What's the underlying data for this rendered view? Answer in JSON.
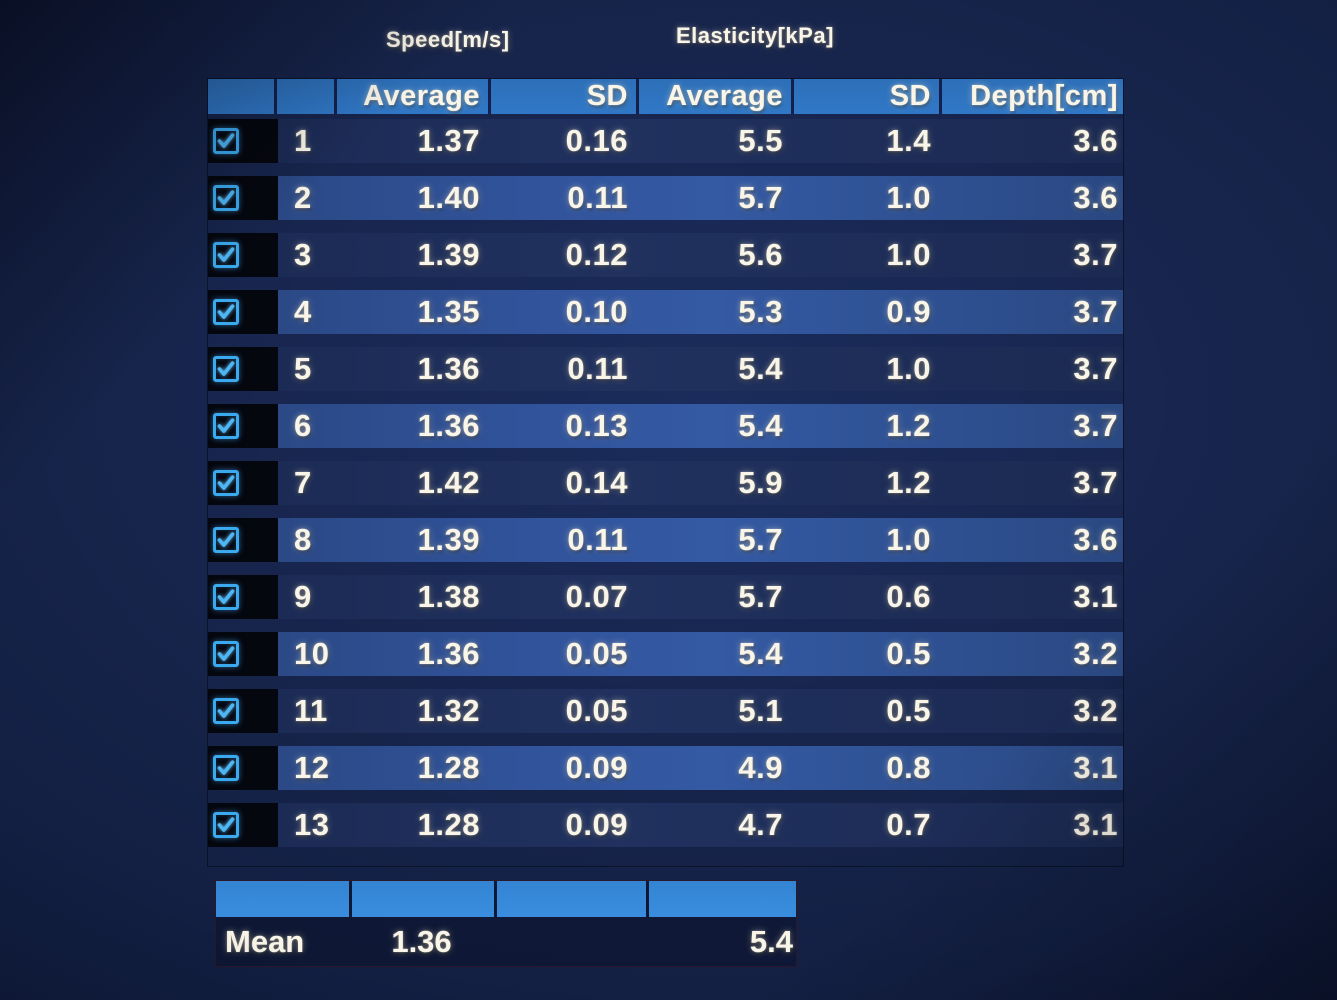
{
  "group_headers": {
    "speed": "Speed[m/s]",
    "elasticity": "Elasticity[kPa]"
  },
  "table": {
    "headers": [
      "",
      "",
      "Average",
      "SD",
      "Average",
      "SD",
      "Depth[cm]"
    ],
    "rows": [
      {
        "num": "1",
        "checked": true,
        "speed_avg": "1.37",
        "speed_sd": "0.16",
        "elast_avg": "5.5",
        "elast_sd": "1.4",
        "depth": "3.6"
      },
      {
        "num": "2",
        "checked": true,
        "speed_avg": "1.40",
        "speed_sd": "0.11",
        "elast_avg": "5.7",
        "elast_sd": "1.0",
        "depth": "3.6"
      },
      {
        "num": "3",
        "checked": true,
        "speed_avg": "1.39",
        "speed_sd": "0.12",
        "elast_avg": "5.6",
        "elast_sd": "1.0",
        "depth": "3.7"
      },
      {
        "num": "4",
        "checked": true,
        "speed_avg": "1.35",
        "speed_sd": "0.10",
        "elast_avg": "5.3",
        "elast_sd": "0.9",
        "depth": "3.7"
      },
      {
        "num": "5",
        "checked": true,
        "speed_avg": "1.36",
        "speed_sd": "0.11",
        "elast_avg": "5.4",
        "elast_sd": "1.0",
        "depth": "3.7"
      },
      {
        "num": "6",
        "checked": true,
        "speed_avg": "1.36",
        "speed_sd": "0.13",
        "elast_avg": "5.4",
        "elast_sd": "1.2",
        "depth": "3.7"
      },
      {
        "num": "7",
        "checked": true,
        "speed_avg": "1.42",
        "speed_sd": "0.14",
        "elast_avg": "5.9",
        "elast_sd": "1.2",
        "depth": "3.7"
      },
      {
        "num": "8",
        "checked": true,
        "speed_avg": "1.39",
        "speed_sd": "0.11",
        "elast_avg": "5.7",
        "elast_sd": "1.0",
        "depth": "3.6"
      },
      {
        "num": "9",
        "checked": true,
        "speed_avg": "1.38",
        "speed_sd": "0.07",
        "elast_avg": "5.7",
        "elast_sd": "0.6",
        "depth": "3.1"
      },
      {
        "num": "10",
        "checked": true,
        "speed_avg": "1.36",
        "speed_sd": "0.05",
        "elast_avg": "5.4",
        "elast_sd": "0.5",
        "depth": "3.2"
      },
      {
        "num": "11",
        "checked": true,
        "speed_avg": "1.32",
        "speed_sd": "0.05",
        "elast_avg": "5.1",
        "elast_sd": "0.5",
        "depth": "3.2"
      },
      {
        "num": "12",
        "checked": true,
        "speed_avg": "1.28",
        "speed_sd": "0.09",
        "elast_avg": "4.9",
        "elast_sd": "0.8",
        "depth": "3.1"
      },
      {
        "num": "13",
        "checked": true,
        "speed_avg": "1.28",
        "speed_sd": "0.09",
        "elast_avg": "4.7",
        "elast_sd": "0.7",
        "depth": "3.1"
      }
    ]
  },
  "mean": {
    "label": "Mean",
    "speed_average": "1.36",
    "elasticity_average": "5.4"
  },
  "icons": {
    "row_checkbox": "check-icon"
  },
  "colors": {
    "header_blue": "#2e73c0",
    "mean_bar_blue": "#3586d6",
    "row_dark": "#1c2b56",
    "row_light": "#2f5198",
    "checkbox_accent": "#3aa9ee",
    "text_warm_white": "#f9f5e8"
  }
}
